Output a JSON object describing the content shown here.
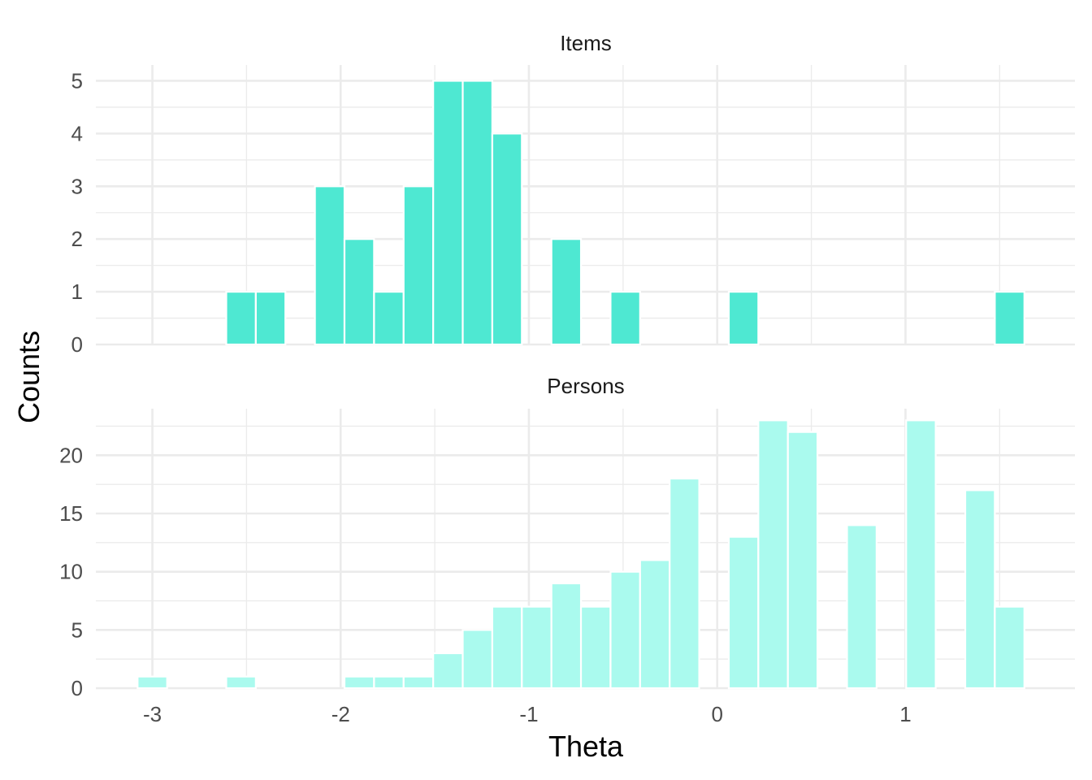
{
  "chart_data": {
    "type": "bar",
    "xlabel": "Theta",
    "ylabel": "Counts",
    "xlim": [
      -3.3,
      1.9
    ],
    "x_ticks": [
      -3,
      -2,
      -1,
      0,
      1
    ],
    "x_tick_labels": [
      "-3",
      "-2",
      "-1",
      "0",
      "1"
    ],
    "bin_width": 0.157,
    "bin_centers": [
      -3.0,
      -2.843,
      -2.686,
      -2.529,
      -2.372,
      -2.215,
      -2.058,
      -1.901,
      -1.744,
      -1.587,
      -1.43,
      -1.273,
      -1.116,
      -0.959,
      -0.802,
      -0.645,
      -0.488,
      -0.331,
      -0.174,
      -0.017,
      0.14,
      0.297,
      0.454,
      0.611,
      0.768,
      0.925,
      1.082,
      1.239,
      1.396,
      1.553
    ],
    "grid": true,
    "panels": [
      {
        "title": "Items",
        "color": "#4EE8D2",
        "ylim": [
          0,
          5.3
        ],
        "y_ticks": [
          0,
          1,
          2,
          3,
          4,
          5
        ],
        "y_tick_labels": [
          "0",
          "1",
          "2",
          "3",
          "4",
          "5"
        ],
        "values": [
          0,
          0,
          0,
          1,
          1,
          0,
          3,
          2,
          1,
          3,
          5,
          5,
          4,
          0,
          2,
          0,
          1,
          0,
          0,
          0,
          1,
          0,
          0,
          0,
          0,
          0,
          0,
          0,
          0,
          1
        ]
      },
      {
        "title": "Persons",
        "color": "#AAFAEE",
        "ylim": [
          0,
          24
        ],
        "y_ticks": [
          0,
          5,
          10,
          15,
          20
        ],
        "y_tick_labels": [
          "0",
          "5",
          "10",
          "15",
          "20"
        ],
        "values": [
          1,
          0,
          0,
          1,
          0,
          0,
          0,
          1,
          1,
          1,
          3,
          5,
          7,
          7,
          9,
          7,
          10,
          11,
          18,
          0,
          13,
          23,
          22,
          0,
          14,
          0,
          23,
          0,
          17,
          7
        ]
      }
    ]
  }
}
